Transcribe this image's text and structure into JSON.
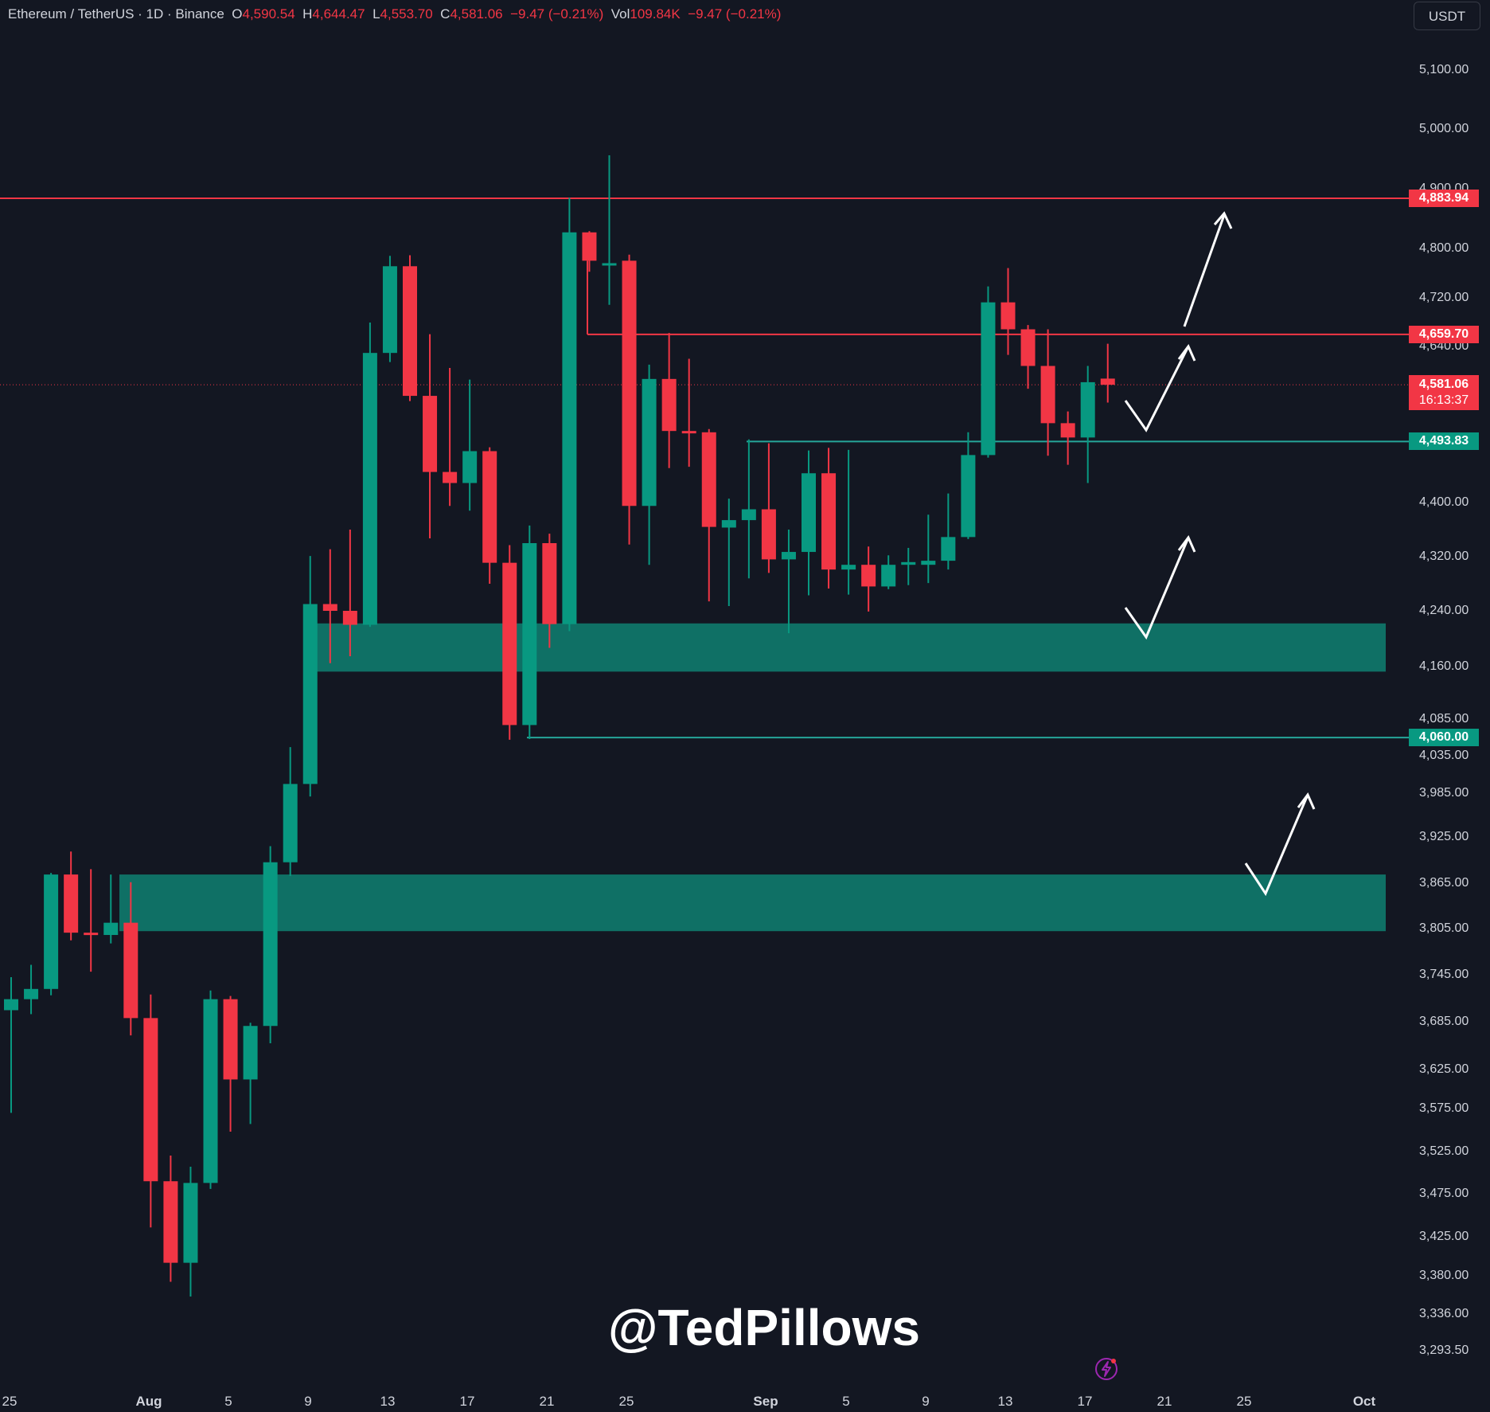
{
  "header": {
    "symbol": "Ethereum / TetherUS · 1D · Binance",
    "o_label": "O",
    "o_value": "4,590.54",
    "h_label": "H",
    "h_value": "4,644.47",
    "l_label": "L",
    "l_value": "4,553.70",
    "c_label": "C",
    "c_value": "4,581.06",
    "change": "−9.47 (−0.21%)",
    "vol_label": "Vol",
    "vol_value": "109.84K",
    "vol_change": "−9.47 (−0.21%)"
  },
  "currency_button": "USDT",
  "watermark": "@TedPillows",
  "colors": {
    "background": "#131722",
    "up": "#089981",
    "down": "#f23645",
    "zone": "#0f7065",
    "text": "#d1d4dc"
  },
  "price_tags": {
    "resistance_high": "4,883.94",
    "resistance_mid": "4,659.70",
    "current_price": "4,581.06",
    "countdown": "16:13:37",
    "support_line": "4,493.83",
    "support_low": "4,060.00"
  },
  "y_axis_labels": [
    "5,100.00",
    "5,000.00",
    "4,900.00",
    "4,800.00",
    "4,720.00",
    "4,640.00",
    "4,400.00",
    "4,320.00",
    "4,240.00",
    "4,160.00",
    "4,085.00",
    "4,035.00",
    "3,985.00",
    "3,925.00",
    "3,865.00",
    "3,805.00",
    "3,745.00",
    "3,685.00",
    "3,625.00",
    "3,575.00",
    "3,525.00",
    "3,475.00",
    "3,425.00",
    "3,380.00",
    "3,336.00",
    "3,293.50"
  ],
  "x_axis_labels": [
    "25",
    "Aug",
    "5",
    "9",
    "13",
    "17",
    "21",
    "25",
    "Sep",
    "5",
    "9",
    "13",
    "17",
    "21",
    "25",
    "Oct"
  ],
  "chart_data": {
    "type": "candlestick",
    "title": "Ethereum / TetherUS · 1D · Binance",
    "currency": "USDT",
    "price_levels": [
      {
        "value": 4883.94,
        "color": "red"
      },
      {
        "value": 4659.7,
        "color": "red"
      },
      {
        "value": 4581.06,
        "color": "red",
        "style": "dotted"
      },
      {
        "value": 4493.83,
        "color": "green"
      },
      {
        "value": 4060.0,
        "color": "green"
      }
    ],
    "zones": [
      {
        "low": 4153,
        "high": 4222
      },
      {
        "low": 3802,
        "high": 3876
      }
    ],
    "candles": [
      {
        "o": 3700,
        "h": 3742,
        "l": 3570,
        "c": 3714
      },
      {
        "o": 3714,
        "h": 3758,
        "l": 3695,
        "c": 3727
      },
      {
        "o": 3727,
        "h": 3878,
        "l": 3719,
        "c": 3876
      },
      {
        "o": 3876,
        "h": 3906,
        "l": 3790,
        "c": 3800
      },
      {
        "o": 3800,
        "h": 3883,
        "l": 3749,
        "c": 3797
      },
      {
        "o": 3797,
        "h": 3876,
        "l": 3786,
        "c": 3813
      },
      {
        "o": 3813,
        "h": 3866,
        "l": 3668,
        "c": 3690
      },
      {
        "o": 3690,
        "h": 3720,
        "l": 3436,
        "c": 3490
      },
      {
        "o": 3490,
        "h": 3520,
        "l": 3373,
        "c": 3395
      },
      {
        "o": 3395,
        "h": 3507,
        "l": 3356,
        "c": 3488
      },
      {
        "o": 3488,
        "h": 3725,
        "l": 3481,
        "c": 3714
      },
      {
        "o": 3714,
        "h": 3718,
        "l": 3548,
        "c": 3612
      },
      {
        "o": 3612,
        "h": 3684,
        "l": 3557,
        "c": 3680
      },
      {
        "o": 3680,
        "h": 3913,
        "l": 3658,
        "c": 3892
      },
      {
        "o": 3892,
        "h": 4047,
        "l": 3874,
        "c": 3997
      },
      {
        "o": 3997,
        "h": 4321,
        "l": 3980,
        "c": 4250
      },
      {
        "o": 4250,
        "h": 4331,
        "l": 4165,
        "c": 4240
      },
      {
        "o": 4240,
        "h": 4360,
        "l": 4175,
        "c": 4220
      },
      {
        "o": 4220,
        "h": 4679,
        "l": 4217,
        "c": 4630
      },
      {
        "o": 4630,
        "h": 4788,
        "l": 4616,
        "c": 4771
      },
      {
        "o": 4771,
        "h": 4789,
        "l": 4556,
        "c": 4564
      },
      {
        "o": 4564,
        "h": 4660,
        "l": 4347,
        "c": 4447
      },
      {
        "o": 4447,
        "h": 4607,
        "l": 4395,
        "c": 4430
      },
      {
        "o": 4430,
        "h": 4589,
        "l": 4388,
        "c": 4479
      },
      {
        "o": 4479,
        "h": 4485,
        "l": 4280,
        "c": 4311
      },
      {
        "o": 4311,
        "h": 4337,
        "l": 4057,
        "c": 4077
      },
      {
        "o": 4077,
        "h": 4366,
        "l": 4058,
        "c": 4340
      },
      {
        "o": 4340,
        "h": 4354,
        "l": 4187,
        "c": 4221
      },
      {
        "o": 4221,
        "h": 4885,
        "l": 4211,
        "c": 4827
      },
      {
        "o": 4827,
        "h": 4829,
        "l": 4762,
        "c": 4780
      },
      {
        "o": 4774,
        "h": 4956,
        "l": 4708,
        "c": 4776
      },
      {
        "o": 4780,
        "h": 4790,
        "l": 4338,
        "c": 4395
      },
      {
        "o": 4395,
        "h": 4612,
        "l": 4308,
        "c": 4590
      },
      {
        "o": 4590,
        "h": 4662,
        "l": 4453,
        "c": 4510
      },
      {
        "o": 4510,
        "h": 4621,
        "l": 4455,
        "c": 4508
      },
      {
        "o": 4508,
        "h": 4513,
        "l": 4254,
        "c": 4364
      },
      {
        "o": 4363,
        "h": 4406,
        "l": 4247,
        "c": 4374
      },
      {
        "o": 4374,
        "h": 4497,
        "l": 4288,
        "c": 4390
      },
      {
        "o": 4390,
        "h": 4491,
        "l": 4296,
        "c": 4316
      },
      {
        "o": 4316,
        "h": 4360,
        "l": 4208,
        "c": 4327
      },
      {
        "o": 4327,
        "h": 4480,
        "l": 4263,
        "c": 4445
      },
      {
        "o": 4445,
        "h": 4484,
        "l": 4273,
        "c": 4301
      },
      {
        "o": 4301,
        "h": 4481,
        "l": 4264,
        "c": 4308
      },
      {
        "o": 4308,
        "h": 4335,
        "l": 4239,
        "c": 4276
      },
      {
        "o": 4276,
        "h": 4322,
        "l": 4272,
        "c": 4308
      },
      {
        "o": 4308,
        "h": 4333,
        "l": 4278,
        "c": 4312
      },
      {
        "o": 4308,
        "h": 4382,
        "l": 4281,
        "c": 4314
      },
      {
        "o": 4314,
        "h": 4414,
        "l": 4301,
        "c": 4349
      },
      {
        "o": 4349,
        "h": 4508,
        "l": 4346,
        "c": 4473
      },
      {
        "o": 4473,
        "h": 4738,
        "l": 4469,
        "c": 4712
      },
      {
        "o": 4712,
        "h": 4768,
        "l": 4627,
        "c": 4668
      },
      {
        "o": 4668,
        "h": 4675,
        "l": 4575,
        "c": 4610
      },
      {
        "o": 4610,
        "h": 4668,
        "l": 4472,
        "c": 4522
      },
      {
        "o": 4522,
        "h": 4540,
        "l": 4458,
        "c": 4500
      },
      {
        "o": 4500,
        "h": 4610,
        "l": 4430,
        "c": 4585
      },
      {
        "o": 4590.54,
        "h": 4644.47,
        "l": 4553.7,
        "c": 4581.06
      }
    ]
  }
}
